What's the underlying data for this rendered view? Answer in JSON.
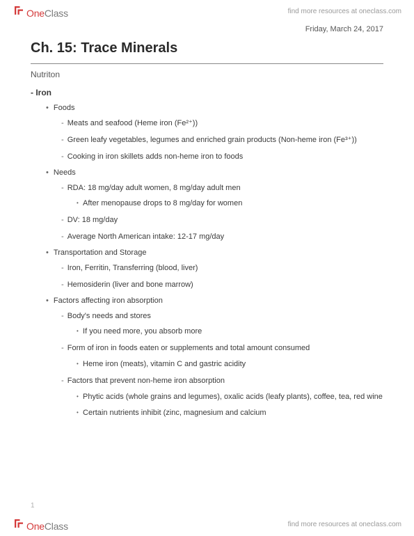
{
  "brand": {
    "one": "One",
    "class": "Class",
    "tagline": "find more resources at oneclass.com"
  },
  "date": "Friday, March 24, 2017",
  "title": "Ch. 15: Trace Minerals",
  "subhead": "Nutriton",
  "pagenum": "1",
  "doc": {
    "topic": "Iron",
    "sections": [
      {
        "heading": "Foods",
        "items": [
          {
            "text": "Meats and seafood (Heme iron (Fe²⁺))"
          },
          {
            "text": "Green leafy vegetables, legumes and enriched grain products (Non-heme iron (Fe³⁺))"
          },
          {
            "text": "Cooking in iron skillets adds non-heme iron to foods"
          }
        ]
      },
      {
        "heading": "Needs",
        "items": [
          {
            "text": "RDA: 18 mg/day adult women, 8 mg/day adult men",
            "sub": [
              "After menopause drops to 8 mg/day for women"
            ]
          },
          {
            "text": "DV: 18 mg/day"
          },
          {
            "text": "Average North American intake: 12-17 mg/day"
          }
        ]
      },
      {
        "heading": "Transportation and Storage",
        "items": [
          {
            "text": "Iron, Ferritin, Transferring (blood, liver)"
          },
          {
            "text": "Hemosiderin (liver and bone marrow)"
          }
        ]
      },
      {
        "heading": "Factors affecting iron absorption",
        "items": [
          {
            "text": "Body's needs and stores",
            "sub": [
              "If you need more, you absorb more"
            ]
          },
          {
            "text": "Form of iron in foods eaten or supplements and total amount consumed",
            "sub": [
              "Heme iron (meats), vitamin C and gastric acidity"
            ]
          },
          {
            "text": "Factors that prevent non-heme iron absorption",
            "sub": [
              "Phytic acids (whole grains and legumes), oxalic acids (leafy plants), coffee, tea, red wine",
              "Certain nutrients inhibit (zinc, magnesium and calcium"
            ]
          }
        ]
      }
    ]
  }
}
